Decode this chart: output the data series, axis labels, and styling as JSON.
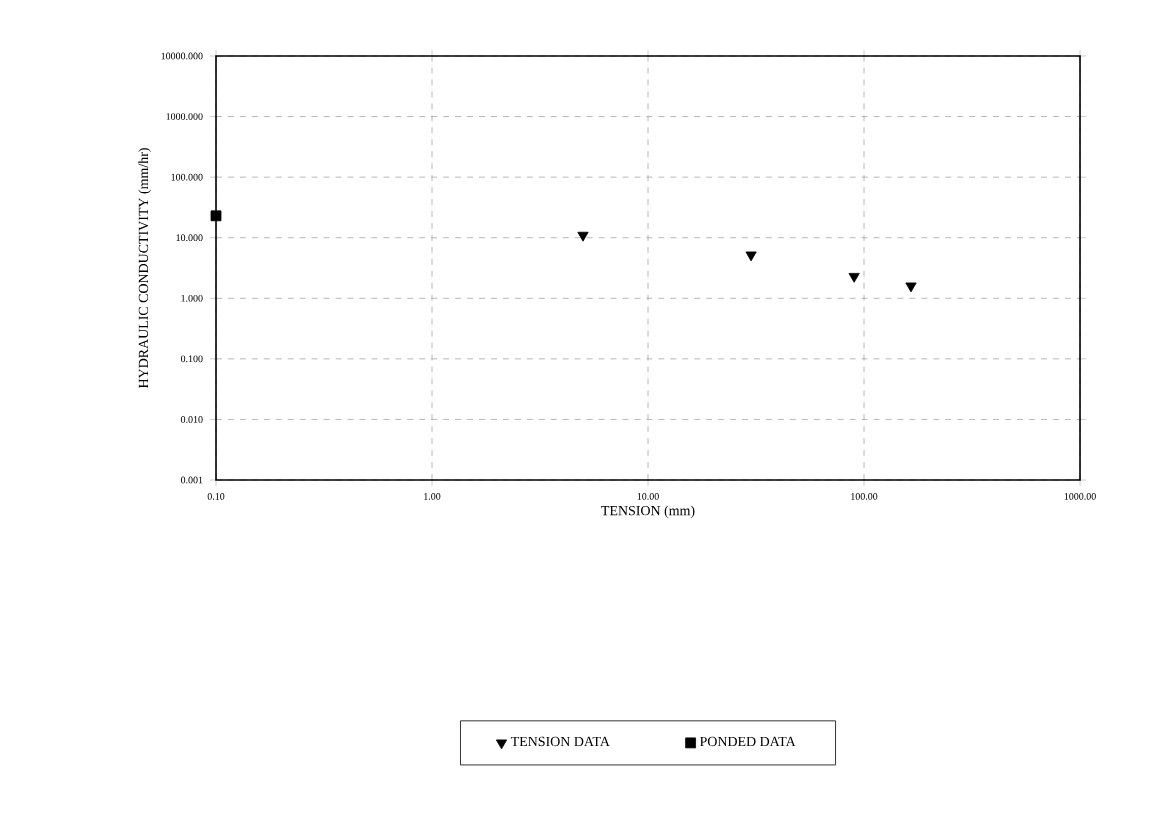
{
  "chart_data": {
    "type": "scatter",
    "xlabel": "TENSION (mm)",
    "ylabel": "HYDRAULIC CONDUCTIVITY (mm/hr)",
    "log": "xy",
    "grid": true,
    "legend": "bottom",
    "xlim": [
      0.1,
      1000
    ],
    "ylim": [
      0.001,
      10000
    ],
    "xticks": [
      {
        "value": 0.1,
        "label": "0.10"
      },
      {
        "value": 1,
        "label": "1.00"
      },
      {
        "value": 10,
        "label": "10.00"
      },
      {
        "value": 100,
        "label": "100.00"
      },
      {
        "value": 1000,
        "label": "1000.00"
      }
    ],
    "yticks": [
      {
        "value": 0.001,
        "label": "0.001"
      },
      {
        "value": 0.01,
        "label": "0.010"
      },
      {
        "value": 0.1,
        "label": "0.100"
      },
      {
        "value": 1,
        "label": "1.000"
      },
      {
        "value": 10,
        "label": "10.000"
      },
      {
        "value": 100,
        "label": "100.000"
      },
      {
        "value": 1000,
        "label": "1000.000"
      },
      {
        "value": 10000,
        "label": "10000.000"
      }
    ],
    "series": [
      {
        "name": "TENSION DATA",
        "color": "#000000",
        "marker": "triangle",
        "x": [
          5,
          30,
          90,
          165
        ],
        "values": [
          11,
          5.2,
          2.3,
          1.6
        ]
      },
      {
        "name": "PONDED DATA",
        "color": "#000000",
        "marker": "square",
        "x": [
          0.1
        ],
        "values": [
          23
        ]
      }
    ]
  }
}
